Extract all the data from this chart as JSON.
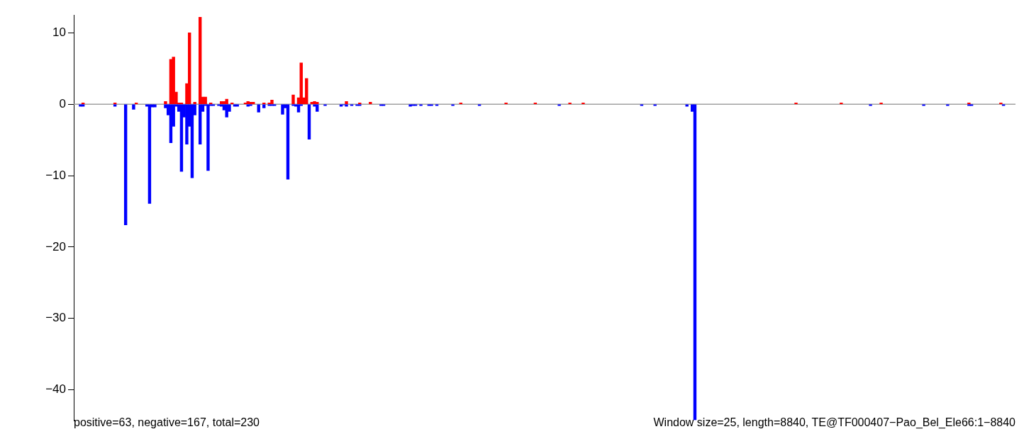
{
  "chart_data": {
    "type": "bar",
    "stacked": true,
    "categories": [
      null,
      null,
      null,
      null,
      null,
      null,
      null,
      null,
      null,
      null,
      null,
      null,
      null,
      null,
      null,
      null,
      null,
      null,
      null,
      null,
      null,
      null,
      null,
      null,
      null,
      null,
      null,
      null,
      null,
      null,
      null,
      null,
      null,
      null,
      null,
      null,
      null,
      null,
      null,
      null,
      null,
      null,
      null,
      null,
      null,
      null,
      null,
      null,
      null,
      null,
      null,
      null,
      null,
      null,
      null,
      null,
      null,
      null,
      null,
      null,
      null,
      null,
      null,
      null,
      null,
      null,
      null,
      null,
      null,
      null,
      null,
      null,
      null,
      null,
      null,
      null,
      null,
      null,
      null,
      null,
      null,
      null,
      null,
      null,
      null,
      null,
      null,
      null,
      null,
      null,
      null,
      null,
      null,
      null,
      null,
      null,
      null,
      null,
      null,
      null,
      null,
      null,
      null,
      null,
      null,
      null,
      null,
      null,
      null,
      null,
      null,
      null,
      null,
      null,
      null,
      null,
      null,
      null,
      null,
      null,
      null,
      null,
      null,
      null,
      null,
      null,
      null,
      null,
      null,
      null,
      null,
      null,
      null,
      null,
      null,
      null,
      null,
      null,
      null,
      null,
      null,
      null,
      null,
      null,
      null,
      null,
      null,
      null,
      null,
      null,
      null,
      null,
      null,
      null,
      null,
      null,
      null,
      null,
      null,
      null,
      null,
      null,
      null,
      null,
      null,
      null,
      null,
      null,
      null,
      null,
      null,
      null,
      null,
      null,
      null,
      null,
      null,
      null,
      null,
      null,
      null,
      null,
      null,
      null,
      null,
      null,
      null,
      null,
      null,
      null,
      null,
      null,
      null,
      null,
      null,
      null,
      null,
      null,
      null,
      null,
      null,
      null,
      null,
      null,
      null,
      null,
      null,
      null,
      null,
      null,
      null,
      null,
      null,
      null,
      null,
      null,
      null,
      null,
      null,
      null,
      null,
      null,
      null,
      null,
      null,
      null,
      null,
      null,
      null,
      null,
      null,
      null,
      null,
      null,
      null,
      null,
      null,
      null,
      null,
      null,
      null,
      null,
      null,
      null,
      null,
      null,
      null,
      null,
      null,
      null,
      null,
      null,
      null,
      null,
      null,
      null,
      null,
      null,
      null,
      null,
      null,
      null,
      null,
      null,
      null,
      null,
      null,
      null,
      null,
      null,
      null,
      null,
      null,
      null,
      null,
      null,
      null,
      null,
      null,
      null,
      null,
      null,
      null,
      null,
      null,
      null,
      null,
      null,
      null,
      null,
      null,
      null,
      null,
      null,
      null,
      null,
      null,
      null,
      null,
      null,
      null,
      null,
      null,
      null,
      null,
      null,
      null,
      null,
      null,
      null,
      null,
      null,
      null,
      null,
      null,
      null,
      null,
      null,
      null,
      null,
      null,
      null,
      null,
      null,
      null,
      null,
      null,
      null,
      null,
      null,
      null,
      null,
      null,
      null,
      null,
      null,
      null,
      null,
      null,
      null,
      null,
      null,
      null,
      null,
      null,
      null,
      null,
      null,
      null,
      null,
      null,
      null,
      null,
      null
    ],
    "series": [
      {
        "color": "#ff0000",
        "values": [
          null,
          null,
          null,
          0.2,
          null,
          null,
          null,
          null,
          null,
          null,
          null,
          null,
          null,
          null,
          null,
          0.2,
          null,
          null,
          null,
          null,
          null,
          null,
          null,
          0.2,
          null,
          null,
          null,
          null,
          null,
          null,
          null,
          null,
          null,
          null,
          0.4,
          null,
          6.3,
          6.6,
          1.7,
          0.2,
          0.2,
          null,
          2.9,
          10.0,
          null,
          0.3,
          null,
          12.2,
          1.0,
          1.0,
          null,
          0.2,
          null,
          null,
          null,
          0.4,
          0.4,
          0.7,
          null,
          0.2,
          null,
          null,
          null,
          null,
          0.2,
          0.4,
          0.3,
          0.3,
          null,
          null,
          null,
          0.2,
          null,
          0.2,
          0.6,
          null,
          null,
          null,
          null,
          null,
          null,
          null,
          1.3,
          null,
          0.9,
          5.8,
          0.9,
          3.6,
          null,
          0.3,
          0.4,
          0.3,
          null,
          null,
          null,
          null,
          null,
          null,
          null,
          null,
          null,
          null,
          0.4,
          null,
          null,
          null,
          null,
          0.2,
          null,
          null,
          null,
          0.3,
          null,
          null,
          null,
          null,
          null,
          null,
          null,
          null,
          null,
          null,
          null,
          null,
          null,
          null,
          null,
          null,
          null,
          null,
          null,
          null,
          null,
          null,
          null,
          null,
          null,
          null,
          null,
          null,
          null,
          null,
          null,
          null,
          null,
          0.2,
          null,
          null,
          null,
          null,
          null,
          null,
          null,
          null,
          null,
          null,
          null,
          null,
          null,
          null,
          null,
          null,
          0.2,
          null,
          null,
          null,
          null,
          null,
          null,
          null,
          null,
          null,
          null,
          0.2,
          null,
          null,
          null,
          null,
          null,
          null,
          null,
          null,
          null,
          null,
          null,
          null,
          0.2,
          null,
          null,
          null,
          null,
          0.2,
          null,
          null,
          null,
          null,
          null,
          null,
          null,
          null,
          null,
          null,
          null,
          null,
          null,
          null,
          null,
          null,
          null,
          null,
          null,
          null,
          null,
          null,
          null,
          null,
          null,
          null,
          null,
          null,
          null,
          null,
          null,
          null,
          null,
          null,
          null,
          null,
          null,
          null,
          null,
          null,
          null,
          null,
          null,
          null,
          null,
          null,
          null,
          null,
          null,
          null,
          null,
          null,
          null,
          null,
          null,
          null,
          null,
          null,
          null,
          null,
          null,
          null,
          null,
          null,
          null,
          null,
          null,
          null,
          null,
          null,
          null,
          null,
          null,
          null,
          null,
          null,
          null,
          null,
          null,
          0.2,
          null,
          null,
          null,
          null,
          null,
          null,
          null,
          null,
          null,
          null,
          null,
          null,
          null,
          null,
          null,
          null,
          0.2,
          null,
          null,
          null,
          null,
          null,
          null,
          null,
          null,
          null,
          null,
          null,
          null,
          null,
          null,
          0.2,
          null,
          null,
          null,
          null,
          null,
          null,
          null,
          null,
          null,
          null,
          null,
          null,
          null,
          null,
          null,
          null,
          null,
          null,
          null,
          null,
          null,
          null,
          null,
          null,
          null,
          null,
          null,
          null,
          null,
          null,
          null,
          null,
          0.2,
          null,
          null,
          null,
          null,
          null,
          null,
          null,
          null,
          null,
          null,
          null,
          0.2,
          null,
          null,
          null,
          null,
          null
        ]
      },
      {
        "color": "#0000ff",
        "values": [
          null,
          null,
          -0.3,
          -0.3,
          null,
          null,
          null,
          null,
          null,
          null,
          null,
          null,
          null,
          null,
          null,
          -0.3,
          null,
          null,
          null,
          -16.9,
          null,
          null,
          -0.7,
          null,
          null,
          null,
          null,
          -0.3,
          -13.9,
          -0.4,
          -0.4,
          null,
          null,
          null,
          -0.5,
          -1.5,
          -5.4,
          -3.1,
          -0.3,
          -1.0,
          -9.4,
          -1.8,
          -5.6,
          -3.1,
          -10.3,
          -1.5,
          null,
          -5.6,
          -1.0,
          -0.2,
          -9.3,
          -0.2,
          -0.2,
          null,
          -0.2,
          -0.3,
          -0.8,
          -1.8,
          -1.0,
          null,
          -0.3,
          -0.3,
          null,
          null,
          null,
          -0.3,
          -0.2,
          null,
          null,
          -1.1,
          null,
          -0.5,
          null,
          -0.2,
          -0.2,
          -0.2,
          null,
          null,
          -1.4,
          -0.5,
          -10.5,
          null,
          -0.2,
          -0.3,
          -1.1,
          -0.2,
          null,
          null,
          -4.9,
          null,
          -0.3,
          -1.0,
          null,
          null,
          -0.2,
          null,
          null,
          null,
          null,
          null,
          -0.3,
          -0.1,
          -0.3,
          null,
          -0.2,
          null,
          -0.2,
          -0.2,
          null,
          null,
          null,
          null,
          null,
          null,
          null,
          -0.2,
          -0.2,
          null,
          null,
          null,
          null,
          null,
          null,
          null,
          null,
          null,
          -0.3,
          -0.2,
          -0.2,
          null,
          -0.2,
          null,
          null,
          -0.2,
          -0.2,
          null,
          -0.2,
          null,
          null,
          null,
          null,
          null,
          -0.2,
          null,
          null,
          null,
          null,
          null,
          null,
          null,
          null,
          null,
          -0.2,
          null,
          null,
          null,
          null,
          null,
          null,
          null,
          null,
          null,
          null,
          null,
          null,
          null,
          null,
          null,
          null,
          null,
          null,
          null,
          null,
          null,
          null,
          null,
          null,
          null,
          null,
          null,
          null,
          null,
          -0.2,
          null,
          null,
          null,
          null,
          null,
          null,
          null,
          null,
          null,
          null,
          null,
          null,
          null,
          null,
          null,
          null,
          null,
          null,
          null,
          null,
          null,
          null,
          null,
          null,
          null,
          null,
          null,
          null,
          null,
          null,
          -0.2,
          null,
          null,
          null,
          null,
          -0.2,
          null,
          null,
          null,
          null,
          null,
          null,
          null,
          null,
          null,
          null,
          null,
          -0.3,
          null,
          -1.0,
          -44.2,
          null,
          null,
          null,
          null,
          null,
          null,
          null,
          null,
          null,
          null,
          null,
          null,
          null,
          null,
          null,
          null,
          null,
          null,
          null,
          null,
          null,
          null,
          null,
          null,
          null,
          null,
          null,
          null,
          null,
          null,
          null,
          null,
          null,
          null,
          null,
          null,
          null,
          null,
          null,
          null,
          null,
          null,
          null,
          null,
          null,
          null,
          null,
          null,
          null,
          null,
          null,
          null,
          null,
          null,
          null,
          null,
          null,
          null,
          null,
          null,
          null,
          null,
          null,
          null,
          null,
          -0.2,
          null,
          null,
          null,
          null,
          null,
          null,
          null,
          null,
          null,
          null,
          null,
          null,
          null,
          null,
          null,
          null,
          null,
          null,
          null,
          -0.2,
          null,
          null,
          null,
          null,
          null,
          null,
          null,
          null,
          -0.2,
          null,
          null,
          null,
          null,
          null,
          null,
          null,
          -0.2,
          -0.2,
          null,
          null,
          null,
          null,
          null,
          null,
          null,
          null,
          null,
          null,
          null,
          -0.2,
          null,
          null,
          null,
          null
        ]
      }
    ],
    "ylim": [
      -44.3,
      12.5
    ],
    "yticks": [
      -40,
      -30,
      -20,
      -10,
      0,
      10
    ],
    "tick_labels": "y",
    "ref_lines": [
      {
        "axis": "y",
        "value": 0,
        "color": "#a0a0a0"
      }
    ],
    "annotations": [
      "positive=63, negative=167, total=230",
      "Window size=25, length=8840, TE@TF000407−Pao_Bel_Ele66:1−8840"
    ]
  }
}
